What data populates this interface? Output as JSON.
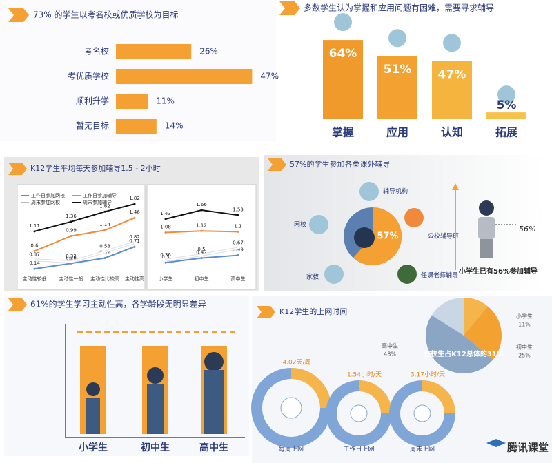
{
  "chart_data": [
    {
      "type": "hbar",
      "title": "73% 的学生以考名校或优质学校为目标",
      "categories": [
        "考名校",
        "考优质学校",
        "顺利升学",
        "暂无目标"
      ],
      "values": [
        26,
        47,
        11,
        14
      ],
      "value_labels": [
        "26%",
        "47%",
        "11%",
        "14%"
      ],
      "color": "#f5a033"
    },
    {
      "type": "bar",
      "title": "多数学生认为掌握和应用问题有困难，需要寻求辅导",
      "categories": [
        "掌握",
        "应用",
        "认知",
        "拓展"
      ],
      "values": [
        64,
        51,
        47,
        5
      ],
      "value_labels": [
        "64%",
        "51%",
        "47%",
        "5%"
      ],
      "colors": [
        "#f09a2c",
        "#f3a232",
        "#f5b43e",
        "#f7c24a"
      ]
    },
    {
      "type": "line",
      "title": "K12学生平均每天参加辅导1.5 - 2小时",
      "categories": [
        "主动性较低",
        "主动性一般",
        "主动性比较高",
        "主动性高"
      ],
      "series": [
        {
          "name": "工作日参加网校",
          "color": "#5b8bd0",
          "values": [
            0.14,
            0.28,
            0.42,
            0.71
          ]
        },
        {
          "name": "工作日参加辅导",
          "color": "#f08a3a",
          "values": [
            0.6,
            0.99,
            1.14,
            1.46
          ]
        },
        {
          "name": "周末参加网校",
          "color": "#ffffff",
          "values": [
            0.37,
            0.32,
            0.58,
            0.82
          ]
        },
        {
          "name": "周末参加辅导",
          "color": "#111111",
          "values": [
            1.11,
            1.36,
            1.62,
            1.82
          ]
        }
      ]
    },
    {
      "type": "line",
      "categories": [
        "小学生",
        "初中生",
        "高中生"
      ],
      "series": [
        {
          "color": "#5b8bd0",
          "values": [
            0.3,
            0.42,
            0.49
          ]
        },
        {
          "color": "#f08a3a",
          "values": [
            1.08,
            1.12,
            1.1
          ]
        },
        {
          "color": "#ffffff",
          "values": [
            0.36,
            0.5,
            0.67
          ]
        },
        {
          "color": "#111111",
          "values": [
            1.43,
            1.66,
            1.53
          ]
        }
      ]
    },
    {
      "type": "pie",
      "title": "K12学生的上网时间",
      "categories": [
        "小学生",
        "初中生",
        "高中生"
      ],
      "values": [
        11,
        25,
        48
      ],
      "value_labels": [
        "11%",
        "25%",
        "48%"
      ],
      "colors": [
        "#f6b54a",
        "#f3a232",
        "#8aa6c4"
      ],
      "annotation": "住校生占K12总体的31%"
    }
  ],
  "diagram": {
    "title": "57%的学生参加各类课外辅导",
    "center": "57%",
    "nodes": [
      "辅导机构",
      "网校",
      "公校辅导班",
      "家教",
      "任课老师辅导"
    ],
    "side_value": "56%",
    "caption": "小学生已有56%参加辅导"
  },
  "illustration": {
    "title": "61%的学生学习主动性高，各学龄段无明显差异",
    "labels": [
      "小学生",
      "初中生",
      "高中生"
    ]
  },
  "usage": [
    {
      "value": "4.02天/周",
      "label": "每周上网"
    },
    {
      "value": "1.54小时/天",
      "label": "工作日上网"
    },
    {
      "value": "3.17小时/天",
      "label": "周末上网"
    }
  ],
  "footer": "腾讯课堂"
}
